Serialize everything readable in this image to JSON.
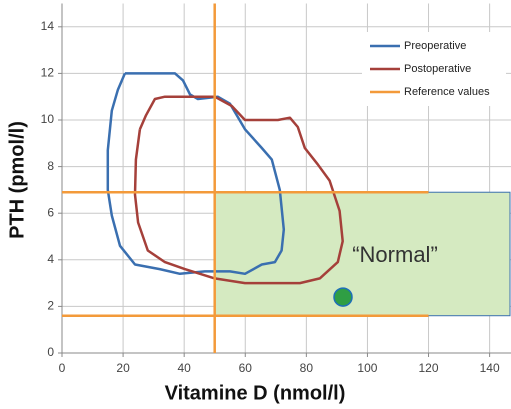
{
  "chart_data": {
    "type": "line",
    "xlabel": "Vitamine D (nmol/l)",
    "ylabel": "PTH (pmol/l)",
    "xlim": [
      0,
      147
    ],
    "ylim": [
      0,
      15
    ],
    "xticks": [
      0,
      20,
      40,
      60,
      80,
      100,
      120,
      140
    ],
    "yticks": [
      0,
      2,
      4,
      6,
      8,
      10,
      12,
      14
    ],
    "grid": true,
    "legend": "upper right",
    "series": [
      {
        "name": "Preoperative",
        "color": "#3a6fb0",
        "x": [
          20.6,
          23.9,
          32,
          37,
          39.6,
          41.9,
          44.5,
          51,
          55,
          59.9,
          65.4,
          68.7,
          71.3,
          72.6,
          71.9,
          69.7,
          65.4,
          59.9,
          55,
          46.8,
          38.6,
          32,
          23.9,
          19,
          16.3,
          15,
          15,
          16.3,
          18.3,
          20.6
        ],
        "values": [
          12.0,
          12.0,
          12.0,
          12.0,
          11.7,
          11.1,
          10.9,
          11.0,
          10.7,
          9.6,
          8.8,
          8.3,
          7.0,
          5.3,
          4.4,
          3.9,
          3.8,
          3.4,
          3.5,
          3.5,
          3.4,
          3.6,
          3.8,
          4.6,
          5.9,
          7.0,
          8.7,
          10.4,
          11.3,
          12.0
        ]
      },
      {
        "name": "Postoperative",
        "color": "#a5403a",
        "x": [
          25.5,
          27.5,
          30.4,
          33.7,
          43.5,
          50,
          55.6,
          59.9,
          66.4,
          70.7,
          74.6,
          77.2,
          79.5,
          83.7,
          87.6,
          90.9,
          91.9,
          90.3,
          84.4,
          77.9,
          71.3,
          59.9,
          50,
          40.2,
          33.7,
          28.1,
          24.9,
          23.9,
          24.2,
          25.5
        ],
        "values": [
          9.6,
          10.2,
          10.9,
          11.0,
          11.0,
          11.0,
          10.6,
          10.0,
          10.0,
          10.0,
          10.1,
          9.7,
          8.8,
          8.1,
          7.4,
          6.1,
          4.8,
          3.9,
          3.2,
          3.0,
          3.0,
          3.0,
          3.2,
          3.6,
          3.9,
          4.4,
          5.6,
          6.8,
          8.3,
          9.6
        ]
      },
      {
        "name": "Reference values",
        "color": "#f39a3a",
        "x": [
          50,
          50,
          null,
          0,
          120,
          null,
          0,
          120
        ],
        "values": [
          0,
          15,
          null,
          6.9,
          6.9,
          null,
          1.6,
          1.6
        ]
      }
    ],
    "normal_region": {
      "label": "“Normal”",
      "x": [
        50,
        147
      ],
      "y": [
        1.6,
        6.9
      ],
      "color": "#d5eac1",
      "edge_color": "#3a6fb0"
    },
    "point": {
      "x": 92,
      "y": 2.4,
      "color": "#2f9e44"
    }
  }
}
